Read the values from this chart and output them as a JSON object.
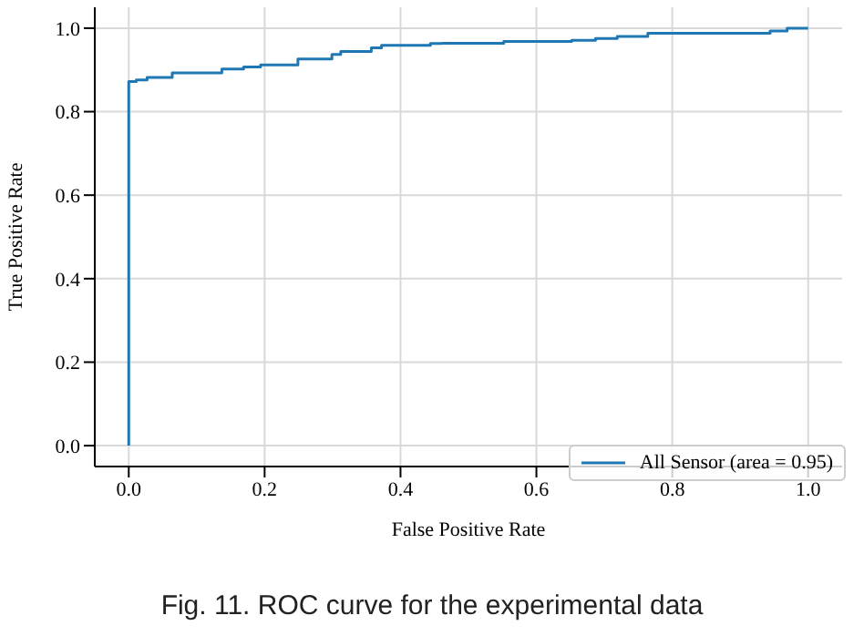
{
  "chart_data": {
    "type": "step",
    "xlabel": "False Positive Rate",
    "ylabel": "True Positive Rate",
    "annotations": [
      "Fig. 11. ROC curve for the experimental data"
    ],
    "xlim": [
      -0.05,
      1.05
    ],
    "ylim": [
      -0.05,
      1.05
    ],
    "xticks": [
      {
        "value": 0,
        "label": "0.0"
      },
      0.2,
      0.4,
      0.6,
      0.8,
      {
        "value": 1,
        "label": "1.0"
      }
    ],
    "yticks": [
      {
        "value": 0,
        "label": "0.0"
      },
      0.2,
      0.4,
      0.6,
      0.8,
      {
        "value": 1,
        "label": "1.0"
      }
    ],
    "grid": true,
    "legend": "bottom right",
    "series": [
      {
        "name": "All Sensor (area = 0.95)",
        "color": "#1f77b4",
        "x": [
          0,
          0,
          0.011,
          0.027,
          0.064,
          0.137,
          0.169,
          0.194,
          0.249,
          0.299,
          0.312,
          0.357,
          0.372,
          0.444,
          0.461,
          0.552,
          0.652,
          0.687,
          0.719,
          0.764,
          0.944,
          0.969,
          1.0
        ],
        "values": [
          0,
          0.872,
          0.876,
          0.882,
          0.893,
          0.902,
          0.907,
          0.912,
          0.926,
          0.937,
          0.944,
          0.953,
          0.959,
          0.963,
          0.964,
          0.968,
          0.971,
          0.975,
          0.98,
          0.988,
          0.993,
          1.0,
          1.0
        ]
      }
    ]
  }
}
